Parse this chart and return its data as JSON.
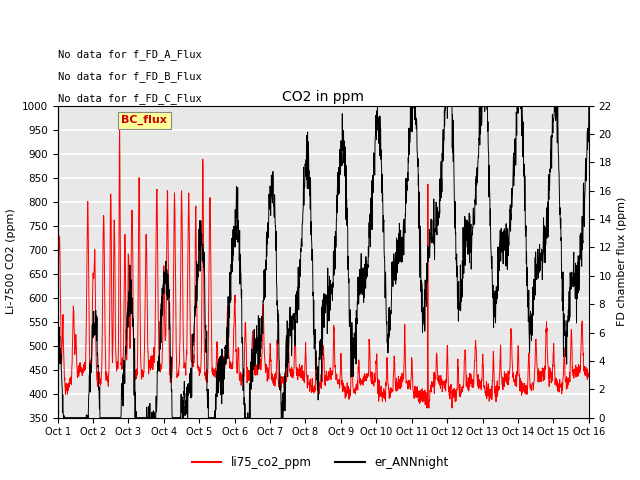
{
  "title": "CO2 in ppm",
  "ylabel_left": "Li-7500 CO2 (ppm)",
  "ylabel_right": "FD chamber flux (ppm)",
  "ylim_left": [
    350,
    1000
  ],
  "ylim_right": [
    0,
    22
  ],
  "xtick_labels": [
    "Oct 1",
    "Oct 2",
    "Oct 3",
    "Oct 4",
    "Oct 5",
    "Oct 6",
    "Oct 7",
    "Oct 8",
    "Oct 9",
    "Oct 10",
    "Oct 11",
    "Oct 12",
    "Oct 13",
    "Oct 14",
    "Oct 15",
    "Oct 16"
  ],
  "yticks_left": [
    350,
    400,
    450,
    500,
    550,
    600,
    650,
    700,
    750,
    800,
    850,
    900,
    950,
    1000
  ],
  "yticks_right": [
    0,
    2,
    4,
    6,
    8,
    10,
    12,
    14,
    16,
    18,
    20,
    22
  ],
  "line1_color": "#ff0000",
  "line2_color": "#000000",
  "legend_labels": [
    "li75_co2_ppm",
    "er_ANNnight"
  ],
  "legend_colors": [
    "#ff0000",
    "#000000"
  ],
  "annotations": [
    "No data for f_FD_A_Flux",
    "No data for f_FD_B_Flux",
    "No data for f_FD_C_Flux"
  ],
  "bc_flux_box_color": "#ffff99",
  "bc_flux_text_color": "#cc0000",
  "plot_bg_color": "#e8e8e8",
  "grid_color": "#ffffff",
  "figsize": [
    6.4,
    4.8
  ],
  "dpi": 100
}
